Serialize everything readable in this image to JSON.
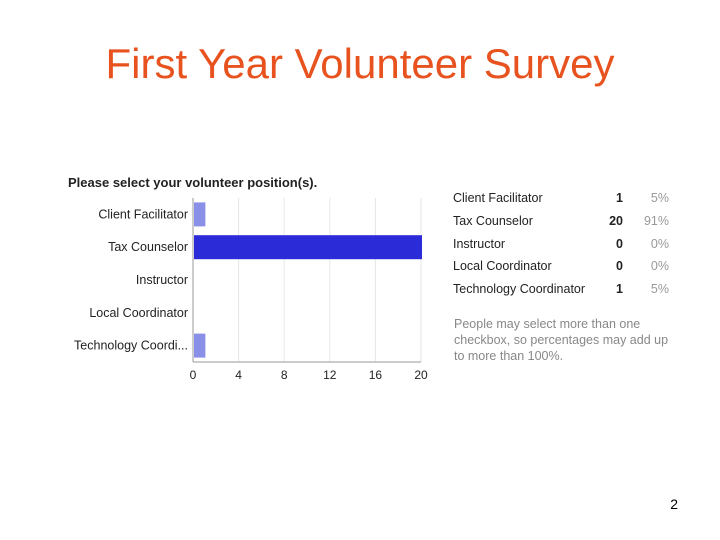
{
  "slide": {
    "title": "First Year Volunteer Survey",
    "page_number": "2"
  },
  "summary": {
    "rows": [
      {
        "label": "Client Facilitator",
        "count": "1",
        "percent": "5%"
      },
      {
        "label": "Tax Counselor",
        "count": "20",
        "percent": "91%"
      },
      {
        "label": "Instructor",
        "count": "0",
        "percent": "0%"
      },
      {
        "label": "Local Coordinator",
        "count": "0",
        "percent": "0%"
      },
      {
        "label": "Technology Coordinator",
        "count": "1",
        "percent": "5%"
      }
    ],
    "note": "People may select more than one checkbox, so percentages may add up to more than 100%."
  },
  "chart_data": {
    "type": "bar",
    "orientation": "horizontal",
    "title": "Please select your volunteer position(s).",
    "categories": [
      "Client Facilitator",
      "Tax Counselor",
      "Instructor",
      "Local Coordinator",
      "Technology Coordi..."
    ],
    "values": [
      1,
      20,
      0,
      0,
      1
    ],
    "xlim": [
      0,
      20
    ],
    "xticks": [
      "0",
      "4",
      "8",
      "12",
      "16",
      "20"
    ],
    "grid": true,
    "colors": {
      "default": "#8a8fe8",
      "highlight": "#2b2bd8",
      "grid": "#e6e6e6",
      "axis": "#999999"
    }
  }
}
